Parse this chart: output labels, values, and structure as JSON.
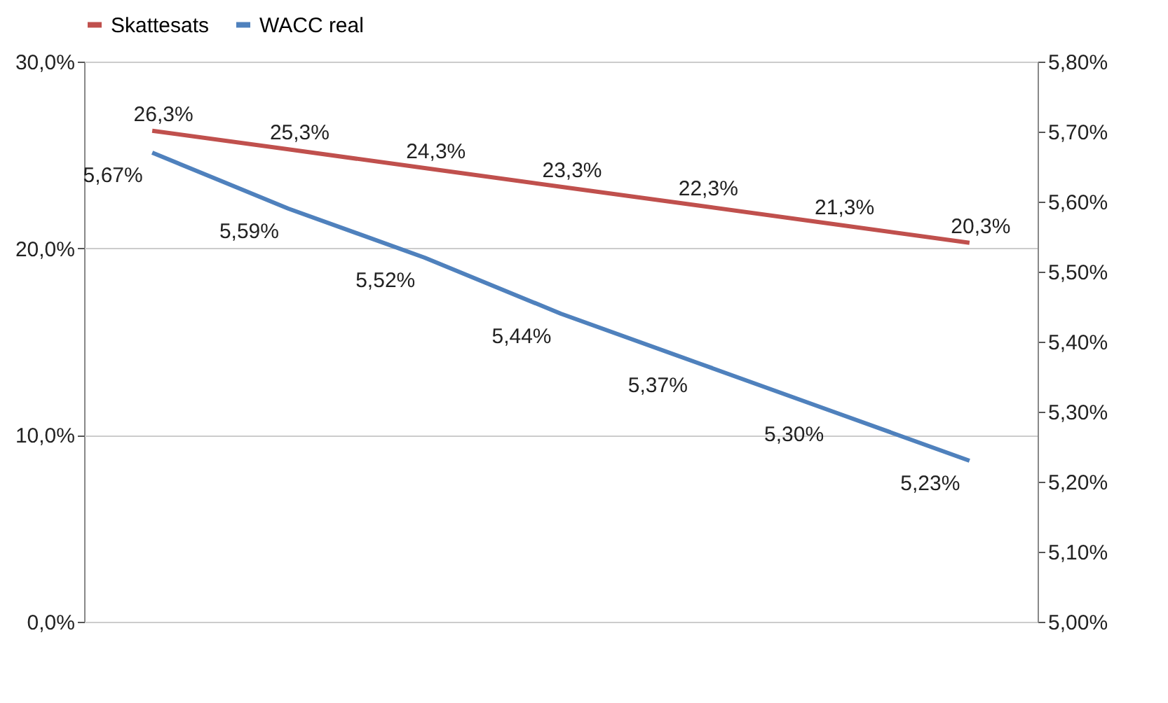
{
  "chart_data": {
    "type": "line",
    "categories": [
      null,
      null,
      null,
      null,
      null,
      null,
      null
    ],
    "series": [
      {
        "name": "Skattesats",
        "color": "#c0504d",
        "values": [
          26.3,
          25.3,
          24.3,
          23.3,
          22.3,
          21.3,
          20.3
        ],
        "value_labels": [
          "26,3%",
          "25,3%",
          "24,3%",
          "23,3%",
          "22,3%",
          "21,3%",
          "20,3%"
        ]
      },
      {
        "name": "WACC real",
        "color": "#4f81bd",
        "axis": "y2",
        "values": [
          5.67,
          5.59,
          5.52,
          5.44,
          5.37,
          5.3,
          5.23
        ],
        "value_labels": [
          "5,67%",
          "5,59%",
          "5,52%",
          "5,44%",
          "5,37%",
          "5,30%",
          "5,23%"
        ]
      }
    ],
    "ylim": [
      0,
      30
    ],
    "yticks": [
      {
        "value": 0,
        "label": "0,0%"
      },
      {
        "value": 10,
        "label": "10,0%"
      },
      {
        "value": 20,
        "label": "20,0%"
      },
      {
        "value": 30,
        "label": "30,0%"
      }
    ],
    "y2lim": [
      5.0,
      5.8
    ],
    "y2ticks": [
      {
        "value": 5.0,
        "label": "5,00%"
      },
      {
        "value": 5.1,
        "label": "5,10%"
      },
      {
        "value": 5.2,
        "label": "5,20%"
      },
      {
        "value": 5.3,
        "label": "5,30%"
      },
      {
        "value": 5.4,
        "label": "5,40%"
      },
      {
        "value": 5.5,
        "label": "5,50%"
      },
      {
        "value": 5.6,
        "label": "5,60%"
      },
      {
        "value": 5.7,
        "label": "5,70%"
      },
      {
        "value": 5.8,
        "label": "5,80%"
      }
    ],
    "grid": true,
    "legend": "top",
    "tick_labels": "y",
    "line_style": "solid",
    "marker": "none"
  }
}
